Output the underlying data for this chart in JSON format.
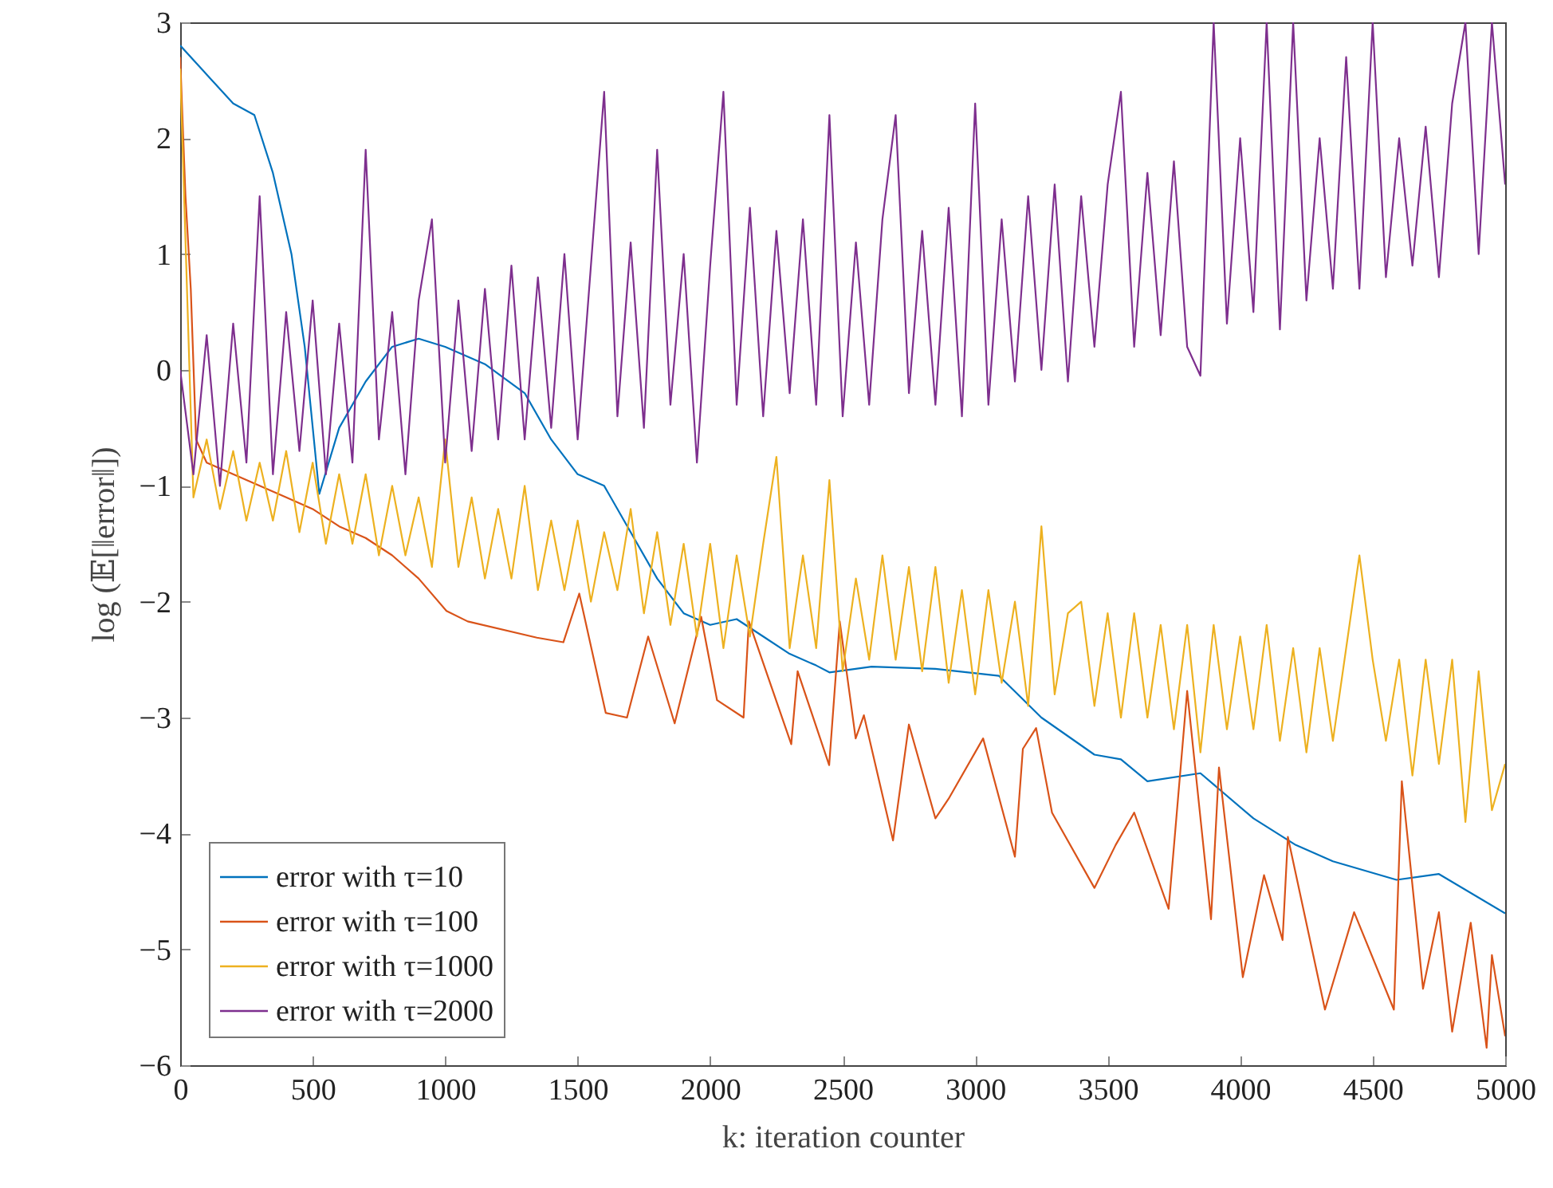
{
  "chart_data": {
    "type": "line",
    "xlabel": "k: iteration counter",
    "ylabel": "log (𝔼[‖error‖])",
    "xlim": [
      0,
      5000
    ],
    "ylim": [
      -6,
      3
    ],
    "xticks": [
      0,
      500,
      1000,
      1500,
      2000,
      2500,
      3000,
      3500,
      4000,
      4500,
      5000
    ],
    "yticks": [
      -6,
      -5,
      -4,
      -3,
      -2,
      -1,
      0,
      1,
      2,
      3
    ],
    "grid": false,
    "legend": "bottom left",
    "marker": "none",
    "line_style": "solid",
    "series": [
      {
        "name": "error with τ=10",
        "color": "#0072bd",
        "x": [
          0,
          100,
          200,
          280,
          350,
          420,
          470,
          525,
          600,
          700,
          800,
          900,
          1000,
          1150,
          1300,
          1400,
          1500,
          1600,
          1700,
          1800,
          1900,
          2000,
          2100,
          2200,
          2300,
          2400,
          2450,
          2609,
          2850,
          3090,
          3250,
          3450,
          3550,
          3650,
          3850,
          4050,
          4210,
          4350,
          4590,
          4750,
          5000
        ],
        "values": [
          2.8,
          2.55,
          2.3,
          2.2,
          1.7,
          1.0,
          0.2,
          -1.07,
          -0.5,
          -0.1,
          0.2,
          0.27,
          0.2,
          0.05,
          -0.2,
          -0.6,
          -0.9,
          -1.0,
          -1.4,
          -1.8,
          -2.1,
          -2.2,
          -2.15,
          -2.3,
          -2.45,
          -2.55,
          -2.61,
          -2.56,
          -2.58,
          -2.64,
          -3.0,
          -3.32,
          -3.36,
          -3.55,
          -3.48,
          -3.87,
          -4.1,
          -4.24,
          -4.4,
          -4.35,
          -4.69
        ]
      },
      {
        "name": "error with τ=100",
        "color": "#d95319",
        "x": [
          0,
          20,
          40,
          60,
          100,
          200,
          300,
          400,
          500,
          600,
          700,
          800,
          900,
          1005,
          1085,
          1346,
          1446,
          1506,
          1606,
          1686,
          1766,
          1866,
          1966,
          2026,
          2126,
          2146,
          2306,
          2330,
          2449,
          2489,
          2549,
          2580,
          2690,
          2750,
          2850,
          2900,
          3030,
          3150,
          3180,
          3230,
          3290,
          3450,
          3530,
          3600,
          3730,
          3800,
          3890,
          3920,
          4010,
          4090,
          4160,
          4180,
          4320,
          4430,
          4580,
          4610,
          4690,
          4750,
          4800,
          4870,
          4930,
          4950,
          5000
        ],
        "values": [
          2.7,
          1.5,
          0.7,
          -0.6,
          -0.8,
          -0.9,
          -1.0,
          -1.1,
          -1.2,
          -1.35,
          -1.45,
          -1.6,
          -1.8,
          -2.08,
          -2.17,
          -2.31,
          -2.35,
          -1.93,
          -2.96,
          -3.0,
          -2.3,
          -3.05,
          -2.13,
          -2.85,
          -3.0,
          -2.17,
          -3.23,
          -2.6,
          -3.41,
          -2.17,
          -3.18,
          -2.98,
          -4.06,
          -3.06,
          -3.87,
          -3.7,
          -3.18,
          -4.2,
          -3.27,
          -3.09,
          -3.82,
          -4.47,
          -4.1,
          -3.82,
          -4.65,
          -2.77,
          -4.74,
          -3.43,
          -5.24,
          -4.36,
          -4.92,
          -4.03,
          -5.52,
          -4.68,
          -5.52,
          -3.55,
          -5.34,
          -4.68,
          -5.71,
          -4.77,
          -5.85,
          -5.05,
          -5.75
        ]
      },
      {
        "name": "error with τ=1000",
        "color": "#edb120",
        "x": [
          0,
          50,
          100,
          150,
          200,
          250,
          300,
          350,
          400,
          450,
          500,
          550,
          600,
          650,
          700,
          750,
          800,
          850,
          900,
          950,
          1000,
          1050,
          1100,
          1150,
          1200,
          1250,
          1300,
          1350,
          1400,
          1450,
          1500,
          1550,
          1600,
          1650,
          1700,
          1750,
          1800,
          1850,
          1900,
          1950,
          2000,
          2050,
          2100,
          2150,
          2200,
          2250,
          2300,
          2350,
          2400,
          2450,
          2500,
          2550,
          2600,
          2650,
          2700,
          2750,
          2800,
          2850,
          2900,
          2950,
          3000,
          3050,
          3100,
          3150,
          3200,
          3250,
          3300,
          3350,
          3400,
          3450,
          3500,
          3550,
          3600,
          3650,
          3700,
          3750,
          3800,
          3850,
          3900,
          3950,
          4000,
          4050,
          4100,
          4150,
          4200,
          4250,
          4300,
          4350,
          4400,
          4450,
          4500,
          4550,
          4600,
          4650,
          4700,
          4750,
          4800,
          4850,
          4900,
          4950,
          5000
        ],
        "values": [
          2.6,
          -1.1,
          -0.6,
          -1.2,
          -0.7,
          -1.3,
          -0.8,
          -1.3,
          -0.7,
          -1.4,
          -0.8,
          -1.5,
          -0.9,
          -1.5,
          -0.9,
          -1.6,
          -1.0,
          -1.6,
          -1.1,
          -1.7,
          -0.6,
          -1.7,
          -1.1,
          -1.8,
          -1.2,
          -1.8,
          -1.0,
          -1.9,
          -1.3,
          -1.9,
          -1.3,
          -2.0,
          -1.4,
          -1.9,
          -1.2,
          -2.1,
          -1.4,
          -2.2,
          -1.5,
          -2.3,
          -1.5,
          -2.4,
          -1.6,
          -2.3,
          -1.5,
          -0.75,
          -2.4,
          -1.6,
          -2.4,
          -0.95,
          -2.6,
          -1.8,
          -2.5,
          -1.6,
          -2.5,
          -1.7,
          -2.6,
          -1.7,
          -2.7,
          -1.9,
          -2.8,
          -1.9,
          -2.7,
          -2.0,
          -2.9,
          -1.35,
          -2.8,
          -2.1,
          -2.0,
          -2.9,
          -2.1,
          -3.0,
          -2.1,
          -3.0,
          -2.2,
          -3.1,
          -2.2,
          -3.3,
          -2.2,
          -3.1,
          -2.3,
          -3.1,
          -2.2,
          -3.2,
          -2.4,
          -3.3,
          -2.4,
          -3.2,
          -2.4,
          -1.6,
          -2.5,
          -3.2,
          -2.5,
          -3.5,
          -2.5,
          -3.4,
          -2.5,
          -3.9,
          -2.6,
          -3.8,
          -3.4
        ]
      },
      {
        "name": "error with τ=2000",
        "color": "#7e2f8e",
        "x": [
          0,
          50,
          100,
          150,
          200,
          250,
          300,
          350,
          400,
          450,
          500,
          550,
          600,
          650,
          700,
          750,
          800,
          850,
          900,
          950,
          1000,
          1050,
          1100,
          1150,
          1200,
          1250,
          1300,
          1350,
          1400,
          1450,
          1500,
          1550,
          1600,
          1650,
          1700,
          1750,
          1800,
          1850,
          1900,
          1950,
          2000,
          2050,
          2100,
          2150,
          2200,
          2250,
          2300,
          2350,
          2400,
          2450,
          2500,
          2550,
          2600,
          2650,
          2700,
          2750,
          2800,
          2850,
          2900,
          2950,
          3000,
          3050,
          3100,
          3150,
          3200,
          3250,
          3300,
          3350,
          3400,
          3450,
          3500,
          3550,
          3600,
          3650,
          3700,
          3750,
          3800,
          3850,
          3900,
          3950,
          4000,
          4050,
          4100,
          4150,
          4200,
          4250,
          4300,
          4350,
          4400,
          4450,
          4500,
          4550,
          4600,
          4650,
          4700,
          4750,
          4800,
          4850,
          4900,
          4950,
          5000
        ],
        "values": [
          0.0,
          -0.9,
          0.3,
          -1.0,
          0.4,
          -0.8,
          1.5,
          -0.9,
          0.5,
          -0.7,
          0.6,
          -0.9,
          0.4,
          -0.8,
          1.9,
          -0.6,
          0.5,
          -0.9,
          0.6,
          1.3,
          -0.8,
          0.6,
          -0.7,
          0.7,
          -0.6,
          0.9,
          -0.6,
          0.8,
          -0.5,
          1.0,
          -0.6,
          0.9,
          2.4,
          -0.4,
          1.1,
          -0.5,
          1.9,
          -0.3,
          1.0,
          -0.8,
          0.9,
          2.4,
          -0.3,
          1.4,
          -0.4,
          1.2,
          -0.2,
          1.3,
          -0.3,
          2.2,
          -0.4,
          1.1,
          -0.3,
          1.3,
          2.2,
          -0.2,
          1.2,
          -0.3,
          1.4,
          -0.4,
          2.3,
          -0.3,
          1.3,
          -0.1,
          1.5,
          0.0,
          1.6,
          -0.1,
          1.5,
          0.2,
          1.6,
          2.4,
          0.2,
          1.7,
          0.3,
          1.8,
          0.2,
          -0.05,
          3,
          0.4,
          2.0,
          0.5,
          3,
          0.35,
          3,
          0.6,
          2.0,
          0.7,
          2.7,
          0.7,
          3,
          0.8,
          2.0,
          0.9,
          2.1,
          0.8,
          2.3,
          3,
          1.0,
          3,
          1.6
        ]
      }
    ]
  }
}
